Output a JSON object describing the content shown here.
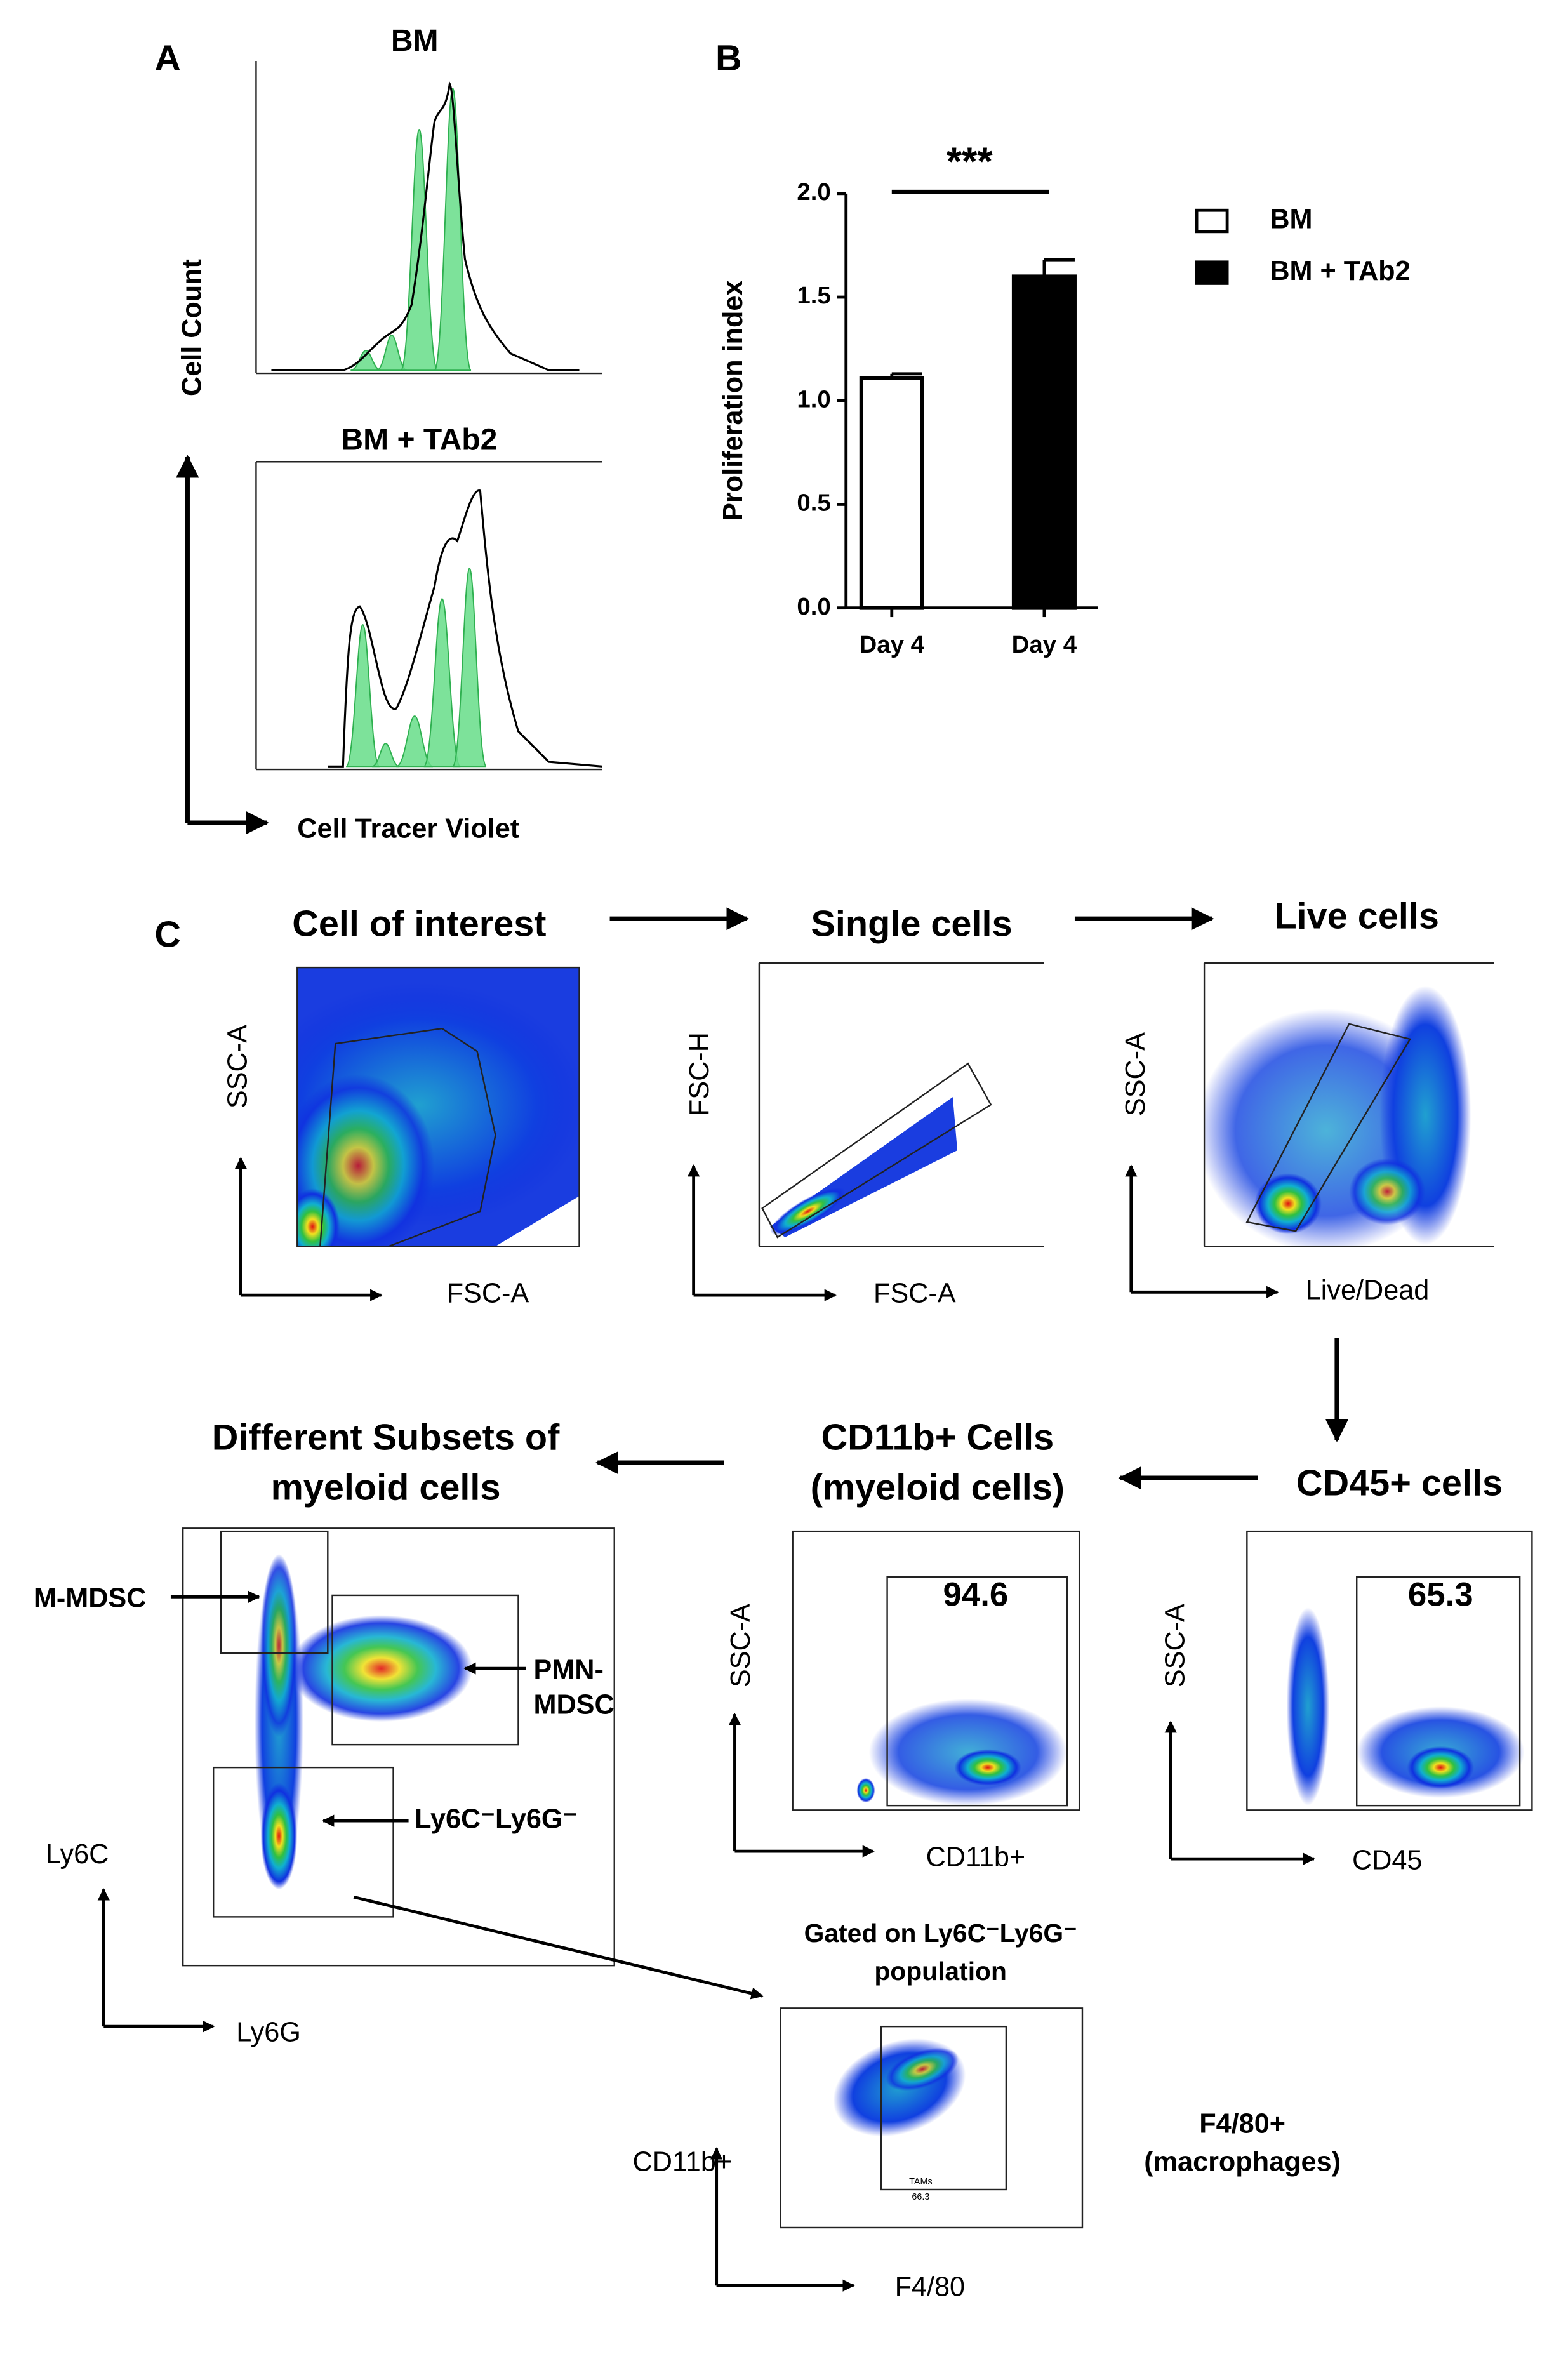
{
  "panel_a": {
    "label": "A",
    "titles": [
      "BM",
      "BM + TAb2"
    ],
    "y_axis": "Cell Count",
    "x_axis": "Cell Tracer Violet"
  },
  "chart_data": {
    "type": "bar",
    "label": "B",
    "categories": [
      "Day 4",
      "Day 4"
    ],
    "ylabel": "Proliferation index",
    "series": [
      {
        "name": "BM",
        "color": "#ffffff",
        "values": [
          1.11,
          null
        ],
        "errors": [
          0.02,
          null
        ]
      },
      {
        "name": "BM + TAb2",
        "color": "#000000",
        "values": [
          null,
          1.6
        ],
        "errors": [
          null,
          0.08
        ]
      }
    ],
    "ylim": [
      0,
      2
    ],
    "yticks": [
      {
        "value": 0,
        "label": "0.0"
      },
      {
        "value": 0.5,
        "label": "0.5"
      },
      {
        "value": 1,
        "label": "1.0"
      },
      {
        "value": 1.5,
        "label": "1.5"
      },
      {
        "value": 2,
        "label": "2.0"
      }
    ],
    "annotation": "***"
  },
  "panel_c": {
    "label": "C",
    "cell_of_interest": {
      "title": "Cell of interest",
      "y": "SSC-A",
      "x": "FSC-A"
    },
    "single_cells": {
      "title": "Single cells",
      "y": "FSC-H",
      "x": "FSC-A"
    },
    "live_cells": {
      "title": "Live cells",
      "y": "SSC-A",
      "x": "Live/Dead"
    },
    "cd45": {
      "title": "CD45+ cells",
      "y": "SSC-A",
      "x": "CD45",
      "gate": "65.3"
    },
    "cd11b": {
      "title": [
        "CD11b+ Cells",
        "(myeloid cells)"
      ],
      "y": "SSC-A",
      "x": "CD11b+",
      "gate": "94.6"
    },
    "subsets": {
      "title": [
        "Different Subsets of",
        "myeloid cells"
      ],
      "y": "Ly6C",
      "x": "Ly6G",
      "m_mdsc": "M-MDSC",
      "pmn_mdsc": [
        "PMN-",
        "MDSC"
      ],
      "double_neg": "Ly6C⁻Ly6G⁻"
    },
    "f480": {
      "gated_on": [
        "Gated on Ly6C⁻Ly6G⁻",
        "population"
      ],
      "y": "CD11b+",
      "x": "F4/80",
      "gate_name": "TAMs",
      "gate": "66.3",
      "result": [
        "F4/80+",
        "(macrophages)"
      ]
    }
  }
}
